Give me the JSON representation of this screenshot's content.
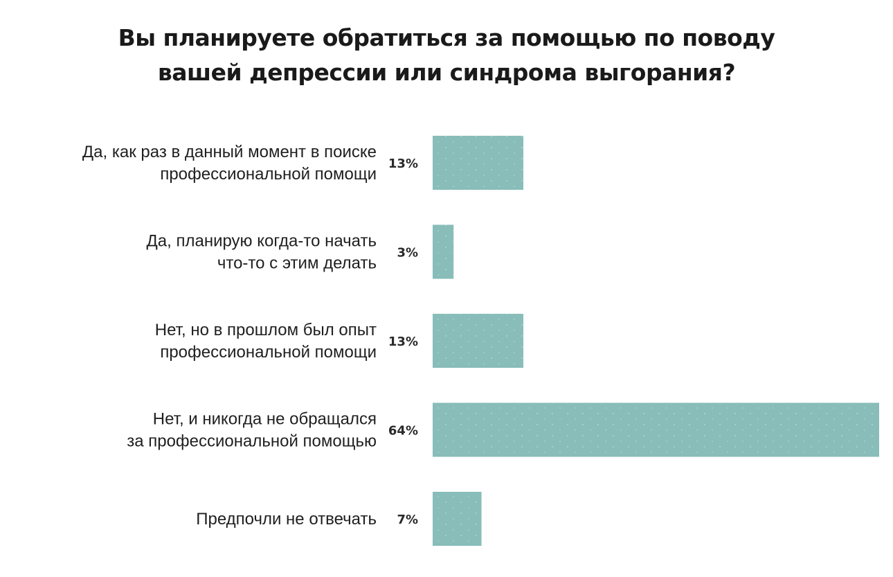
{
  "chart_data": {
    "type": "bar",
    "orientation": "horizontal",
    "title": "Вы планируете обратиться за помощью по поводу вашей депрессии или синдрома выгорания?",
    "title_lines": [
      "Вы планируете обратиться за помощью по поводу",
      "вашей депрессии или синдрома выгорания?"
    ],
    "categories": [
      [
        "Да, как раз в данный момент в поиске",
        "профессиональной помощи"
      ],
      [
        "Да, планирую когда-то начать",
        "что-то с этим делать"
      ],
      [
        "Нет, но в прошлом был опыт",
        "профессиональной помощи"
      ],
      [
        "Нет, и никогда не обращался",
        "за профессиональной помощью"
      ],
      [
        "Предпочли не отвечать"
      ]
    ],
    "values": [
      13,
      3,
      13,
      64,
      7
    ],
    "value_labels": [
      "13%",
      "3%",
      "13%",
      "64%",
      "7%"
    ],
    "unit": "%",
    "xlim": [
      0,
      64
    ],
    "xlabel": "",
    "ylabel": "",
    "grid": false,
    "legend": "none",
    "bar_color": "#88bdb9"
  }
}
